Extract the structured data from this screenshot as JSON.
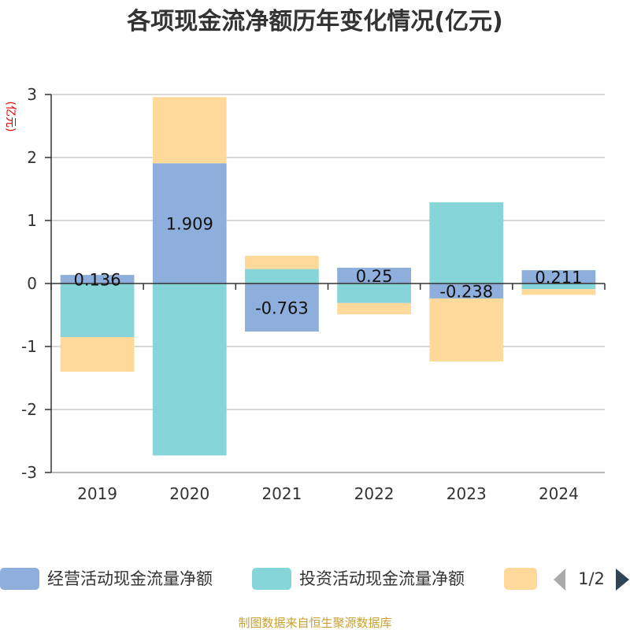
{
  "chart_data": {
    "type": "bar",
    "stacked": true,
    "title": "各项现金流净额历年变化情况(亿元)",
    "ylabel": "(亿元)",
    "ylim": [
      -3,
      3
    ],
    "yticks": [
      3,
      2,
      1,
      0,
      -1,
      -2,
      -3
    ],
    "categories": [
      "2019",
      "2020",
      "2021",
      "2022",
      "2023",
      "2024"
    ],
    "series": [
      {
        "name": "经营活动现金流量净额",
        "color": "#8eaedb",
        "values": [
          0.136,
          1.909,
          -0.763,
          0.25,
          -0.238,
          0.211
        ],
        "labels": [
          "0.136",
          "1.909",
          "-0.763",
          "0.25",
          "-0.238",
          "0.211"
        ]
      },
      {
        "name": "投资活动现金流量净额",
        "color": "#86d5d8",
        "values": [
          -0.85,
          -2.73,
          0.23,
          -0.31,
          1.29,
          -0.09
        ]
      },
      {
        "name": "",
        "color": "#fed999",
        "values": [
          -0.55,
          1.05,
          0.21,
          -0.18,
          -1.0,
          -0.09
        ]
      }
    ],
    "legend": {
      "position": "bottom",
      "page": "1/2"
    },
    "source": "制图数据来自恒生聚源数据库"
  }
}
